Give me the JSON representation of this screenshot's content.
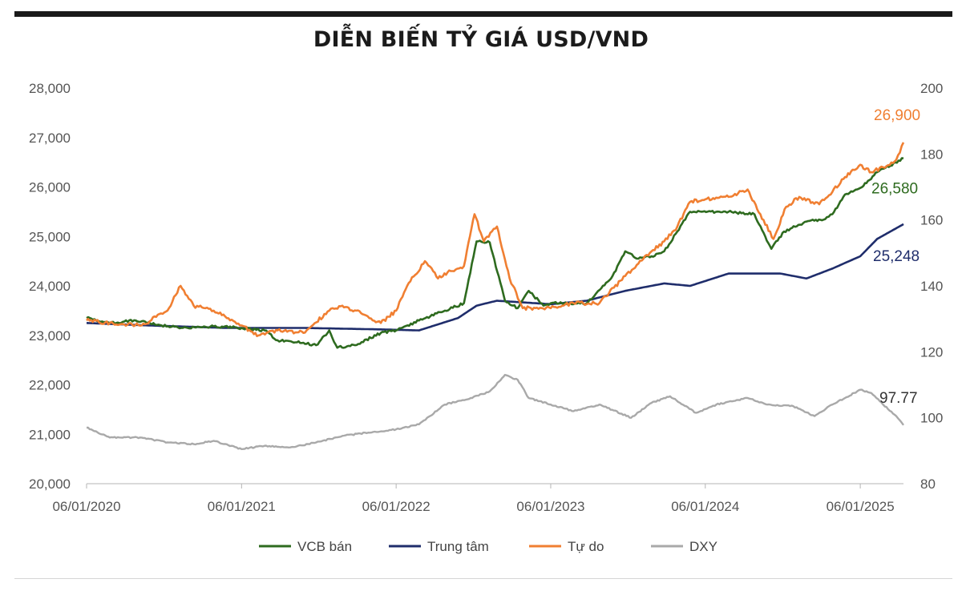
{
  "chart_data": {
    "type": "line",
    "title": "DIỄN BIẾN TỶ GIÁ USD/VND",
    "x_type": "date",
    "x_range": [
      "2020-01-06",
      "2025-04-18"
    ],
    "x_ticks": [
      "06/01/2020",
      "06/01/2021",
      "06/01/2022",
      "06/01/2023",
      "06/01/2024",
      "06/01/2025"
    ],
    "y_left": {
      "range": [
        20000,
        28000
      ],
      "ticks": [
        "20,000",
        "21,000",
        "22,000",
        "23,000",
        "24,000",
        "25,000",
        "26,000",
        "27,000",
        "28,000"
      ]
    },
    "y_right": {
      "range": [
        80,
        200
      ],
      "ticks": [
        "80",
        "100",
        "120",
        "140",
        "160",
        "180",
        "200"
      ]
    },
    "grid": false,
    "legend_position": "bottom",
    "series": [
      {
        "name": "VCB bán",
        "axis": "left",
        "color": "#2e6b1f",
        "end_label": "26,580",
        "points": [
          [
            "2020-01-06",
            23350
          ],
          [
            "2020-03-01",
            23250
          ],
          [
            "2020-05-01",
            23300
          ],
          [
            "2020-07-01",
            23200
          ],
          [
            "2020-09-01",
            23150
          ],
          [
            "2020-11-01",
            23180
          ],
          [
            "2021-01-06",
            23150
          ],
          [
            "2021-03-01",
            23100
          ],
          [
            "2021-04-01",
            22900
          ],
          [
            "2021-06-01",
            22850
          ],
          [
            "2021-07-01",
            22800
          ],
          [
            "2021-08-01",
            23100
          ],
          [
            "2021-08-20",
            22750
          ],
          [
            "2021-10-01",
            22800
          ],
          [
            "2021-12-01",
            23050
          ],
          [
            "2022-01-06",
            23100
          ],
          [
            "2022-03-01",
            23300
          ],
          [
            "2022-05-01",
            23500
          ],
          [
            "2022-06-15",
            23650
          ],
          [
            "2022-07-15",
            24900
          ],
          [
            "2022-08-15",
            24880
          ],
          [
            "2022-09-20",
            23700
          ],
          [
            "2022-10-20",
            23550
          ],
          [
            "2022-11-15",
            23900
          ],
          [
            "2022-12-20",
            23600
          ],
          [
            "2023-01-06",
            23650
          ],
          [
            "2023-04-01",
            23650
          ],
          [
            "2023-06-01",
            24200
          ],
          [
            "2023-07-01",
            24700
          ],
          [
            "2023-08-01",
            24550
          ],
          [
            "2023-09-01",
            24600
          ],
          [
            "2023-10-01",
            24700
          ],
          [
            "2023-11-01",
            25100
          ],
          [
            "2023-12-01",
            25500
          ],
          [
            "2024-03-01",
            25500
          ],
          [
            "2024-05-01",
            25450
          ],
          [
            "2024-06-10",
            24750
          ],
          [
            "2024-07-10",
            25100
          ],
          [
            "2024-09-01",
            25300
          ],
          [
            "2024-10-15",
            25350
          ],
          [
            "2024-11-01",
            25450
          ],
          [
            "2024-12-01",
            25850
          ],
          [
            "2025-01-06",
            25980
          ],
          [
            "2025-02-15",
            26300
          ],
          [
            "2025-04-18",
            26580
          ]
        ]
      },
      {
        "name": "Trung tâm",
        "axis": "left",
        "color": "#1f2d6b",
        "end_label": "25,248",
        "points": [
          [
            "2020-01-06",
            23250
          ],
          [
            "2020-06-01",
            23200
          ],
          [
            "2020-12-01",
            23150
          ],
          [
            "2021-06-01",
            23150
          ],
          [
            "2021-12-01",
            23120
          ],
          [
            "2022-03-01",
            23100
          ],
          [
            "2022-06-01",
            23350
          ],
          [
            "2022-07-15",
            23600
          ],
          [
            "2022-09-01",
            23700
          ],
          [
            "2022-12-01",
            23650
          ],
          [
            "2023-01-06",
            23630
          ],
          [
            "2023-04-01",
            23700
          ],
          [
            "2023-07-01",
            23900
          ],
          [
            "2023-10-01",
            24050
          ],
          [
            "2023-12-01",
            24000
          ],
          [
            "2024-03-01",
            24250
          ],
          [
            "2024-07-01",
            24250
          ],
          [
            "2024-09-01",
            24150
          ],
          [
            "2024-11-01",
            24350
          ],
          [
            "2025-01-06",
            24600
          ],
          [
            "2025-02-15",
            24950
          ],
          [
            "2025-04-18",
            25248
          ]
        ]
      },
      {
        "name": "Tự do",
        "axis": "left",
        "color": "#f07f32",
        "end_label": "26,900",
        "points": [
          [
            "2020-01-06",
            23300
          ],
          [
            "2020-03-01",
            23250
          ],
          [
            "2020-05-15",
            23200
          ],
          [
            "2020-07-15",
            23500
          ],
          [
            "2020-08-15",
            24000
          ],
          [
            "2020-09-15",
            23600
          ],
          [
            "2020-11-01",
            23500
          ],
          [
            "2021-01-06",
            23200
          ],
          [
            "2021-02-15",
            23000
          ],
          [
            "2021-04-01",
            23100
          ],
          [
            "2021-06-01",
            23050
          ],
          [
            "2021-08-01",
            23500
          ],
          [
            "2021-09-01",
            23600
          ],
          [
            "2021-10-15",
            23450
          ],
          [
            "2021-12-01",
            23250
          ],
          [
            "2022-01-06",
            23500
          ],
          [
            "2022-02-01",
            24000
          ],
          [
            "2022-03-15",
            24500
          ],
          [
            "2022-04-15",
            24150
          ],
          [
            "2022-05-15",
            24300
          ],
          [
            "2022-06-15",
            24400
          ],
          [
            "2022-07-10",
            25450
          ],
          [
            "2022-08-01",
            24900
          ],
          [
            "2022-09-01",
            25200
          ],
          [
            "2022-10-01",
            24150
          ],
          [
            "2022-11-01",
            23550
          ],
          [
            "2022-12-01",
            23550
          ],
          [
            "2023-01-06",
            23550
          ],
          [
            "2023-03-01",
            23650
          ],
          [
            "2023-05-01",
            23650
          ],
          [
            "2023-07-01",
            24200
          ],
          [
            "2023-08-01",
            24450
          ],
          [
            "2023-09-01",
            24700
          ],
          [
            "2023-10-01",
            24900
          ],
          [
            "2023-11-01",
            25200
          ],
          [
            "2023-12-01",
            25700
          ],
          [
            "2024-01-06",
            25750
          ],
          [
            "2024-03-01",
            25800
          ],
          [
            "2024-04-15",
            25950
          ],
          [
            "2024-05-15",
            25450
          ],
          [
            "2024-06-15",
            24950
          ],
          [
            "2024-07-15",
            25600
          ],
          [
            "2024-08-15",
            25800
          ],
          [
            "2024-10-01",
            25650
          ],
          [
            "2024-11-01",
            25900
          ],
          [
            "2024-12-01",
            26200
          ],
          [
            "2025-01-06",
            26450
          ],
          [
            "2025-02-01",
            26300
          ],
          [
            "2025-03-01",
            26400
          ],
          [
            "2025-04-01",
            26550
          ],
          [
            "2025-04-18",
            26900
          ]
        ]
      },
      {
        "name": "DXY",
        "axis": "right",
        "color": "#a9a9a9",
        "end_label": "97.77",
        "points": [
          [
            "2020-01-06",
            97.0
          ],
          [
            "2020-03-01",
            94.0
          ],
          [
            "2020-05-15",
            94.0
          ],
          [
            "2020-07-15",
            92.5
          ],
          [
            "2020-09-15",
            92.0
          ],
          [
            "2020-11-01",
            93.0
          ],
          [
            "2021-01-06",
            90.5
          ],
          [
            "2021-03-01",
            91.5
          ],
          [
            "2021-05-01",
            91.0
          ],
          [
            "2021-07-01",
            92.5
          ],
          [
            "2021-09-01",
            94.5
          ],
          [
            "2021-11-01",
            95.5
          ],
          [
            "2022-01-06",
            96.5
          ],
          [
            "2022-03-01",
            98.0
          ],
          [
            "2022-05-01",
            104.0
          ],
          [
            "2022-07-01",
            106.0
          ],
          [
            "2022-08-15",
            108.0
          ],
          [
            "2022-09-20",
            113.0
          ],
          [
            "2022-10-20",
            111.5
          ],
          [
            "2022-11-15",
            106.0
          ],
          [
            "2023-01-06",
            104.0
          ],
          [
            "2023-03-01",
            102.0
          ],
          [
            "2023-05-01",
            104.0
          ],
          [
            "2023-07-15",
            100.0
          ],
          [
            "2023-09-01",
            104.5
          ],
          [
            "2023-10-15",
            106.5
          ],
          [
            "2023-12-15",
            101.5
          ],
          [
            "2024-02-01",
            104.0
          ],
          [
            "2024-04-15",
            106.0
          ],
          [
            "2024-06-01",
            104.0
          ],
          [
            "2024-08-01",
            103.5
          ],
          [
            "2024-09-20",
            100.5
          ],
          [
            "2024-11-01",
            104.0
          ],
          [
            "2024-12-01",
            106.0
          ],
          [
            "2025-01-06",
            108.5
          ],
          [
            "2025-02-01",
            107.5
          ],
          [
            "2025-03-01",
            104.0
          ],
          [
            "2025-04-01",
            100.5
          ],
          [
            "2025-04-18",
            97.77
          ]
        ]
      }
    ]
  }
}
